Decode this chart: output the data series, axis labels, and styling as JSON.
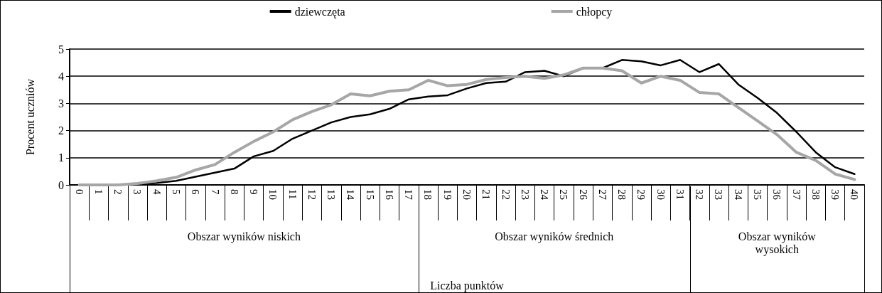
{
  "chart_data": {
    "type": "line",
    "ylabel": "Procent uczniów",
    "categories": [
      "0",
      "1",
      "2",
      "3",
      "4",
      "5",
      "6",
      "7",
      "8",
      "9",
      "10",
      "11",
      "12",
      "13",
      "14",
      "15",
      "16",
      "17",
      "18",
      "19",
      "20",
      "21",
      "22",
      "23",
      "24",
      "25",
      "26",
      "27",
      "28",
      "29",
      "30",
      "31",
      "32",
      "33",
      "34",
      "35",
      "36",
      "37",
      "38",
      "39",
      "40"
    ],
    "series": [
      {
        "name": "dziewczęta",
        "color": "#000000",
        "values": [
          0,
          0,
          0,
          0.02,
          0.07,
          0.15,
          0.3,
          0.45,
          0.6,
          1.05,
          1.25,
          1.7,
          2.0,
          2.3,
          2.5,
          2.6,
          2.8,
          3.15,
          3.25,
          3.3,
          3.55,
          3.75,
          3.8,
          4.15,
          4.2,
          4.0,
          4.3,
          4.3,
          4.6,
          4.55,
          4.4,
          4.6,
          4.15,
          4.45,
          3.7,
          3.2,
          2.65,
          1.95,
          1.2,
          0.65,
          0.4
        ]
      },
      {
        "name": "chłopcy",
        "color": "#a6a6a6",
        "values": [
          0,
          0,
          0,
          0.05,
          0.15,
          0.28,
          0.55,
          0.75,
          1.2,
          1.6,
          1.95,
          2.4,
          2.7,
          2.95,
          3.35,
          3.28,
          3.45,
          3.5,
          3.85,
          3.65,
          3.7,
          3.88,
          3.95,
          4.0,
          3.92,
          4.05,
          4.3,
          4.3,
          4.2,
          3.75,
          4.0,
          3.85,
          3.4,
          3.35,
          2.85,
          2.35,
          1.85,
          1.2,
          0.9,
          0.4,
          0.2
        ]
      }
    ],
    "ylim": [
      0,
      5
    ],
    "yticks": [
      0,
      1,
      2,
      3,
      4,
      5
    ],
    "grid": "y",
    "legend": "top",
    "marker": "none",
    "line_style": "solid",
    "annotations": [
      "Obszar wyników niskich",
      "Obszar wyników średnich",
      "Obszar wyników\nwysokich",
      "Liczba punktów"
    ]
  }
}
